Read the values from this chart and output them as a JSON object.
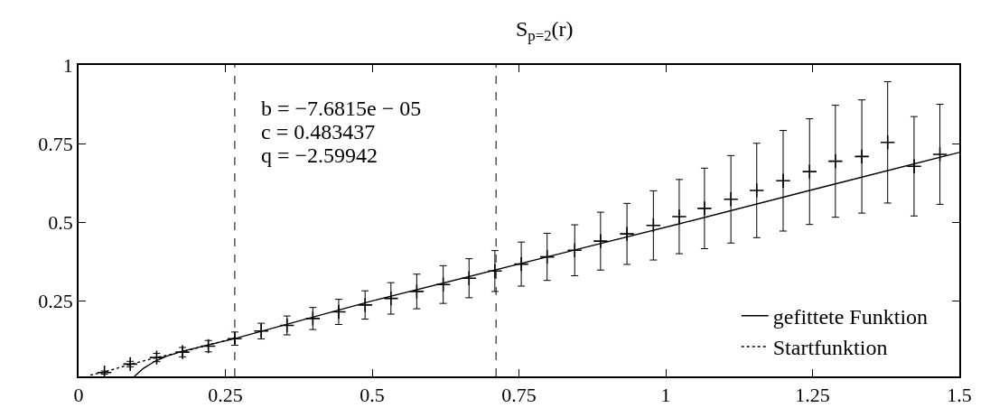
{
  "chart_data": {
    "type": "scatter",
    "title": "S$_{p=2}$(r)",
    "xlim": [
      0,
      1.5
    ],
    "xticks": [
      0,
      0.25,
      0.5,
      0.75,
      1,
      1.25,
      1.5
    ],
    "ylim": [
      0.01,
      1
    ],
    "yticks": [
      0.25,
      0.5,
      0.75,
      1
    ],
    "legend": "bottom right",
    "series": [
      {
        "color": "#000000",
        "marker": "cross",
        "x": [
          0.044,
          0.088,
          0.133,
          0.177,
          0.221,
          0.266,
          0.311,
          0.355,
          0.399,
          0.443,
          0.488,
          0.532,
          0.576,
          0.621,
          0.665,
          0.709,
          0.754,
          0.798,
          0.845,
          0.889,
          0.934,
          0.979,
          1.023,
          1.066,
          1.111,
          1.155,
          1.2,
          1.245,
          1.289,
          1.334,
          1.378,
          1.423,
          1.467
        ],
        "values": [
          0.022,
          0.049,
          0.07,
          0.087,
          0.106,
          0.13,
          0.154,
          0.172,
          0.194,
          0.215,
          0.237,
          0.258,
          0.28,
          0.302,
          0.322,
          0.345,
          0.367,
          0.39,
          0.411,
          0.44,
          0.463,
          0.49,
          0.518,
          0.544,
          0.573,
          0.601,
          0.632,
          0.661,
          0.694,
          0.709,
          0.754,
          0.678,
          0.716
        ],
        "errors": [
          0.005,
          0.009,
          0.013,
          0.015,
          0.018,
          0.021,
          0.025,
          0.03,
          0.035,
          0.04,
          0.045,
          0.05,
          0.055,
          0.06,
          0.062,
          0.065,
          0.07,
          0.075,
          0.081,
          0.092,
          0.097,
          0.11,
          0.118,
          0.128,
          0.139,
          0.15,
          0.16,
          0.168,
          0.178,
          0.18,
          0.193,
          0.158,
          0.159
        ]
      },
      {
        "type": "line",
        "name": "gefittete Funktion",
        "color": "#000000",
        "line_style": "solid",
        "x": [
          0.095,
          0.11,
          0.13,
          0.15,
          0.177,
          0.221,
          0.266,
          0.5,
          0.798,
          1.023,
          1.245,
          1.5
        ],
        "values": [
          0.01,
          0.035,
          0.058,
          0.074,
          0.09,
          0.11,
          0.13,
          0.25,
          0.39,
          0.495,
          0.601,
          0.722
        ]
      },
      {
        "type": "line",
        "name": "Startfunktion",
        "color": "#000000",
        "line_style": "dotted",
        "x": [
          0.02,
          0.044,
          0.088,
          0.133,
          0.177,
          0.221,
          0.266
        ],
        "values": [
          0.014,
          0.024,
          0.048,
          0.07,
          0.088,
          0.11,
          0.132
        ]
      }
    ],
    "ref_lines": [
      {
        "axis": "x",
        "value": 0.266,
        "color": "#000000",
        "line_style": "dashed"
      },
      {
        "axis": "x",
        "value": 0.711,
        "color": "#000000",
        "line_style": "dashed"
      }
    ],
    "annotations": [
      "b = −7.6815e − 05",
      "c = 0.483437",
      "q = −2.59942"
    ]
  }
}
